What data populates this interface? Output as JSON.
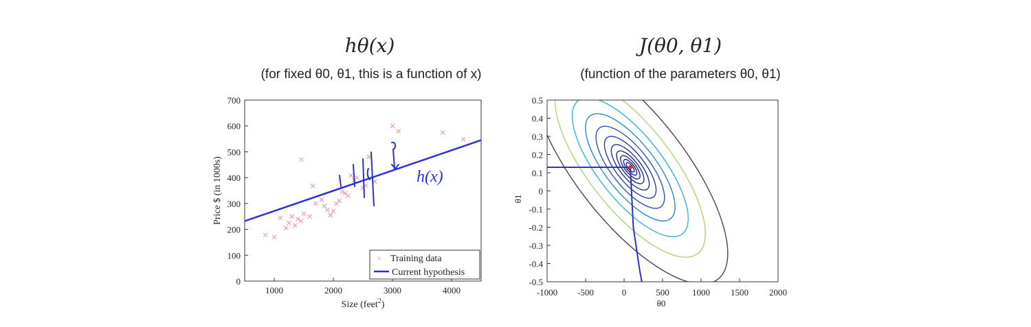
{
  "slide": {
    "left_title": "hθ(x)",
    "left_subtitle": "(for fixed θ0, θ1, this is a function of x)",
    "right_title": "J(θ0, θ1)",
    "right_subtitle": "(function of the parameters θ0, θ1)"
  },
  "chart_data": [
    {
      "type": "scatter",
      "title": "hθ(x)",
      "xlabel": "Size (feet2)",
      "ylabel": "Price $ (in 1000s)",
      "xlim": [
        500,
        4500
      ],
      "ylim": [
        0,
        700
      ],
      "xticks": [
        1000,
        2000,
        3000,
        4000
      ],
      "yticks": [
        0,
        100,
        200,
        300,
        400,
        500,
        600,
        700
      ],
      "legend_position": "bottom-right",
      "series": [
        {
          "name": "Training data",
          "marker": "x",
          "color": "#e8a0a8",
          "points": [
            [
              852,
              178
            ],
            [
              1000,
              170
            ],
            [
              1100,
              245
            ],
            [
              1200,
              205
            ],
            [
              1250,
              225
            ],
            [
              1300,
              250
            ],
            [
              1350,
              215
            ],
            [
              1400,
              240
            ],
            [
              1450,
              232
            ],
            [
              1460,
              470
            ],
            [
              1500,
              260
            ],
            [
              1600,
              250
            ],
            [
              1650,
              368
            ],
            [
              1700,
              300
            ],
            [
              1800,
              315
            ],
            [
              1850,
              290
            ],
            [
              1900,
              275
            ],
            [
              1950,
              255
            ],
            [
              2000,
              270
            ],
            [
              2050,
              300
            ],
            [
              2100,
              310
            ],
            [
              2150,
              345
            ],
            [
              2200,
              340
            ],
            [
              2250,
              330
            ],
            [
              2300,
              408
            ],
            [
              2350,
              390
            ],
            [
              2400,
              400
            ],
            [
              2500,
              360
            ],
            [
              2550,
              370
            ],
            [
              2600,
              480
            ],
            [
              2700,
              385
            ],
            [
              3000,
              600
            ],
            [
              3100,
              580
            ],
            [
              3850,
              575
            ],
            [
              4200,
              548
            ]
          ]
        },
        {
          "name": "Current hypothesis",
          "type": "line",
          "color": "#2b2fd6",
          "points": [
            [
              500,
              232
            ],
            [
              4500,
              545
            ]
          ]
        }
      ],
      "annotation": "h(x)"
    },
    {
      "type": "contour",
      "xlabel": "θ0",
      "ylabel": "θ1",
      "xlim": [
        -1000,
        2000
      ],
      "ylim": [
        -0.5,
        0.5
      ],
      "xticks": [
        -1000,
        -500,
        0,
        500,
        1000,
        1500,
        2000
      ],
      "yticks": [
        -0.5,
        -0.4,
        -0.3,
        -0.2,
        -0.1,
        0,
        0.1,
        0.2,
        0.3,
        0.4,
        0.5
      ],
      "minimum": [
        80,
        0.13
      ],
      "marker": {
        "theta0": 80,
        "theta1": 0.13,
        "color": "#e03030"
      },
      "contour_levels": [
        {
          "a": 0.15,
          "color": "#1c1c8a"
        },
        {
          "a": 0.25,
          "color": "#1c1c8a"
        },
        {
          "a": 0.37,
          "color": "#1f2290"
        },
        {
          "a": 0.52,
          "color": "#232896"
        },
        {
          "a": 0.72,
          "color": "#26309c"
        },
        {
          "a": 0.98,
          "color": "#2a3aa8"
        },
        {
          "a": 1.3,
          "color": "#2f4fc0"
        },
        {
          "a": 1.7,
          "color": "#2a86cc"
        },
        {
          "a": 2.2,
          "color": "#34b0d6"
        },
        {
          "a": 2.85,
          "color": "#a9d67a"
        },
        {
          "a": 3.7,
          "color": "#5a3a46"
        }
      ],
      "annotation_lines": [
        {
          "points": [
            [
              -1000,
              0.13
            ],
            [
              80,
              0.13
            ]
          ],
          "color": "#2b2fd6"
        },
        {
          "points": [
            [
              80,
              0.13
            ],
            [
              120,
              -0.2
            ],
            [
              200,
              -0.43
            ],
            [
              230,
              -0.5
            ]
          ],
          "color": "#2b2fd6"
        }
      ]
    }
  ]
}
